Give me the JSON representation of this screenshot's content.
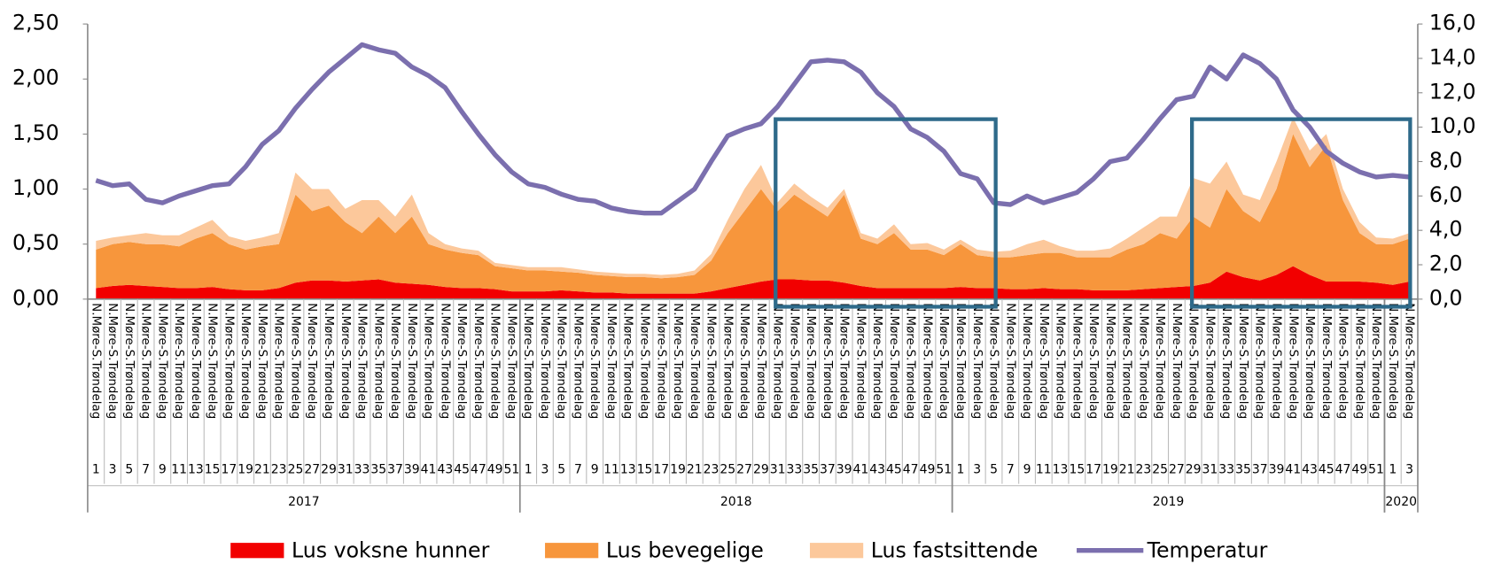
{
  "chart_data": {
    "type": "stacked-area-line",
    "categories": [
      "1",
      "3",
      "5",
      "7",
      "9",
      "11",
      "13",
      "15",
      "17",
      "19",
      "21",
      "23",
      "25",
      "27",
      "29",
      "31",
      "33",
      "35",
      "37",
      "39",
      "41",
      "43",
      "45",
      "47",
      "49",
      "51",
      "1",
      "3",
      "5",
      "7",
      "9",
      "11",
      "13",
      "15",
      "17",
      "19",
      "21",
      "23",
      "25",
      "27",
      "29",
      "31",
      "33",
      "35",
      "37",
      "39",
      "41",
      "43",
      "45",
      "47",
      "49",
      "51",
      "1",
      "3",
      "5",
      "7",
      "9",
      "11",
      "13",
      "15",
      "17",
      "19",
      "21",
      "23",
      "25",
      "27",
      "29",
      "31",
      "33",
      "35",
      "37",
      "39",
      "41",
      "43",
      "45",
      "47",
      "49",
      "51",
      "1",
      "3"
    ],
    "region": "N.Møre-S.Trøndelag",
    "years": [
      "2017",
      "2018",
      "2019",
      "2020"
    ],
    "ylim": [
      0,
      2.5
    ],
    "yticks": [
      {
        "value": 0,
        "label": "0,00"
      },
      {
        "value": 0.5,
        "label": "0,50"
      },
      {
        "value": 1,
        "label": "1,00"
      },
      {
        "value": 1.5,
        "label": "1,50"
      },
      {
        "value": 2,
        "label": "2,00"
      },
      {
        "value": 2.5,
        "label": "2,50"
      }
    ],
    "y2lim": [
      0,
      16
    ],
    "y2ticks": [
      {
        "value": 0,
        "label": "0,0"
      },
      {
        "value": 2,
        "label": "2,0"
      },
      {
        "value": 4,
        "label": "4,0"
      },
      {
        "value": 6,
        "label": "6,0"
      },
      {
        "value": 8,
        "label": "8,0"
      },
      {
        "value": 10,
        "label": "10,0"
      },
      {
        "value": 12,
        "label": "12,0"
      },
      {
        "value": 14,
        "label": "14,0"
      },
      {
        "value": 16,
        "label": "16,0"
      }
    ],
    "series": [
      {
        "name": "Lus voksne hunner",
        "color": "#f20000",
        "values": [
          0.1,
          0.12,
          0.13,
          0.12,
          0.11,
          0.1,
          0.1,
          0.11,
          0.09,
          0.08,
          0.08,
          0.1,
          0.15,
          0.17,
          0.17,
          0.16,
          0.17,
          0.18,
          0.15,
          0.14,
          0.13,
          0.11,
          0.1,
          0.1,
          0.09,
          0.07,
          0.07,
          0.07,
          0.08,
          0.07,
          0.06,
          0.06,
          0.05,
          0.05,
          0.05,
          0.05,
          0.05,
          0.07,
          0.1,
          0.13,
          0.16,
          0.18,
          0.18,
          0.17,
          0.17,
          0.15,
          0.12,
          0.1,
          0.1,
          0.1,
          0.1,
          0.1,
          0.11,
          0.1,
          0.1,
          0.09,
          0.09,
          0.1,
          0.09,
          0.09,
          0.08,
          0.08,
          0.08,
          0.09,
          0.1,
          0.11,
          0.12,
          0.15,
          0.25,
          0.2,
          0.17,
          0.22,
          0.3,
          0.22,
          0.16,
          0.16,
          0.16,
          0.15,
          0.13,
          0.16
        ]
      },
      {
        "name": "Lus bevegelige",
        "color": "#f7963c",
        "values": [
          0.35,
          0.38,
          0.39,
          0.38,
          0.39,
          0.38,
          0.45,
          0.49,
          0.41,
          0.37,
          0.4,
          0.4,
          0.8,
          0.63,
          0.68,
          0.54,
          0.43,
          0.57,
          0.45,
          0.61,
          0.37,
          0.34,
          0.32,
          0.3,
          0.21,
          0.21,
          0.19,
          0.19,
          0.17,
          0.17,
          0.16,
          0.15,
          0.15,
          0.15,
          0.14,
          0.15,
          0.17,
          0.28,
          0.5,
          0.67,
          0.84,
          0.62,
          0.77,
          0.68,
          0.58,
          0.8,
          0.43,
          0.4,
          0.5,
          0.35,
          0.35,
          0.3,
          0.39,
          0.3,
          0.28,
          0.29,
          0.31,
          0.32,
          0.33,
          0.29,
          0.3,
          0.3,
          0.37,
          0.41,
          0.5,
          0.44,
          0.63,
          0.5,
          0.75,
          0.6,
          0.53,
          0.78,
          1.2,
          0.98,
          1.24,
          0.74,
          0.44,
          0.35,
          0.37,
          0.39
        ]
      },
      {
        "name": "Lus fastsittende",
        "color": "#fcc89b",
        "values": [
          0.08,
          0.06,
          0.06,
          0.1,
          0.08,
          0.1,
          0.1,
          0.12,
          0.07,
          0.08,
          0.08,
          0.1,
          0.2,
          0.2,
          0.15,
          0.12,
          0.3,
          0.15,
          0.15,
          0.2,
          0.1,
          0.05,
          0.04,
          0.04,
          0.03,
          0.03,
          0.03,
          0.03,
          0.04,
          0.03,
          0.03,
          0.03,
          0.03,
          0.03,
          0.03,
          0.03,
          0.04,
          0.06,
          0.12,
          0.2,
          0.22,
          0.08,
          0.1,
          0.08,
          0.08,
          0.05,
          0.05,
          0.05,
          0.08,
          0.05,
          0.06,
          0.05,
          0.04,
          0.05,
          0.05,
          0.06,
          0.1,
          0.12,
          0.06,
          0.06,
          0.06,
          0.08,
          0.1,
          0.15,
          0.15,
          0.2,
          0.35,
          0.4,
          0.25,
          0.15,
          0.2,
          0.25,
          0.15,
          0.15,
          0.1,
          0.1,
          0.1,
          0.06,
          0.05,
          0.05
        ]
      },
      {
        "name": "Temperatur",
        "color": "#7b6fae",
        "axis": "y2",
        "values": [
          6.9,
          6.6,
          6.7,
          5.8,
          5.6,
          6.0,
          6.3,
          6.6,
          6.7,
          7.7,
          9.0,
          9.8,
          11.1,
          12.2,
          13.2,
          14.0,
          14.8,
          14.5,
          14.3,
          13.5,
          13.0,
          12.3,
          10.9,
          9.6,
          8.4,
          7.4,
          6.7,
          6.5,
          6.1,
          5.8,
          5.7,
          5.3,
          5.1,
          5.0,
          5.0,
          5.7,
          6.4,
          8.0,
          9.5,
          9.9,
          10.2,
          11.2,
          12.5,
          13.8,
          13.9,
          13.8,
          13.2,
          12.0,
          11.2,
          9.9,
          9.4,
          8.6,
          7.3,
          7.0,
          5.6,
          5.5,
          6.0,
          5.6,
          5.9,
          6.2,
          7.0,
          8.0,
          8.2,
          9.3,
          10.5,
          11.6,
          11.8,
          13.5,
          12.8,
          14.2,
          13.7,
          12.8,
          11.0,
          10.0,
          8.6,
          7.9,
          7.4,
          7.1,
          7.2,
          7.1
        ]
      }
    ]
  }
}
